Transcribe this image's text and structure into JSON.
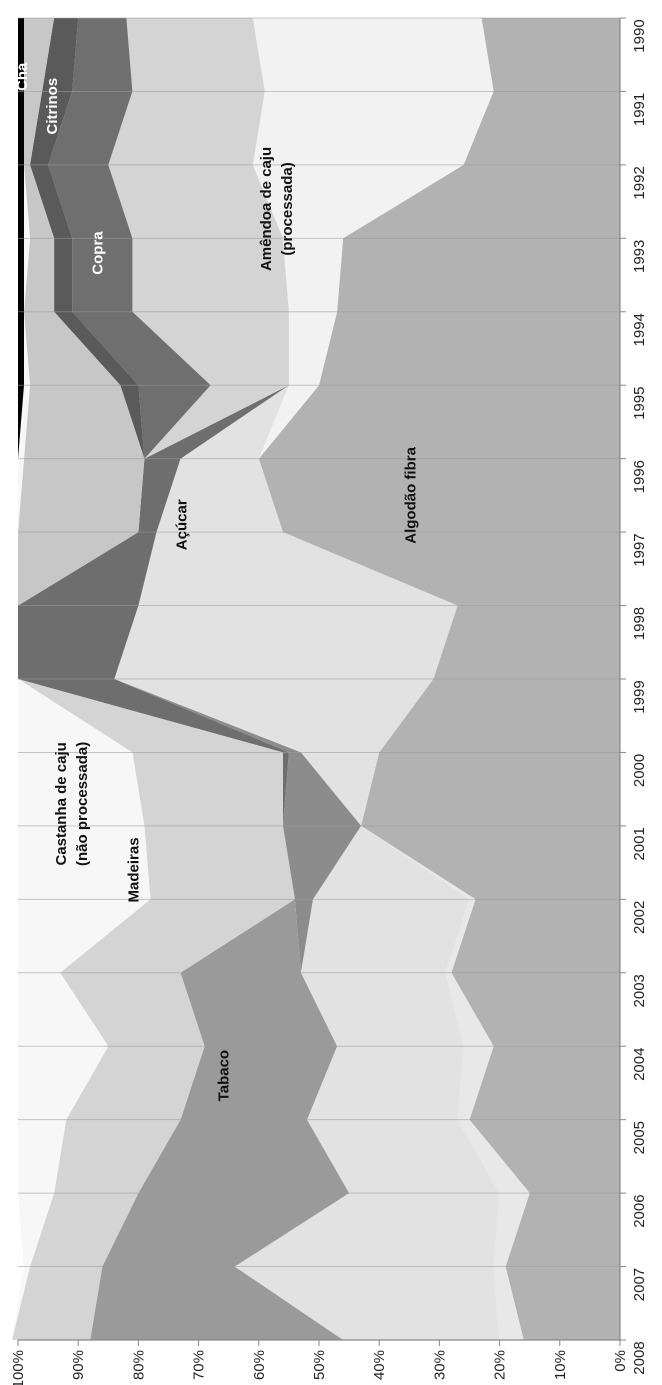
{
  "chart_data": {
    "type": "area",
    "stacked": "percent",
    "orientation": "rotated-90",
    "x": [
      1990,
      1991,
      1992,
      1993,
      1994,
      1995,
      1996,
      1997,
      1998,
      1999,
      2000,
      2001,
      2002,
      2003,
      2004,
      2005,
      2006,
      2007,
      2008
    ],
    "x_tick_labels": [
      "1990",
      "1991",
      "1992",
      "1993",
      "1994",
      "1995",
      "1996",
      "1997",
      "1998",
      "1999",
      "2000",
      "2001",
      "2002",
      "2003",
      "2004",
      "2005",
      "2006",
      "2007",
      "2008"
    ],
    "y_tick_labels": [
      "0%",
      "10%",
      "20%",
      "30%",
      "40%",
      "50%",
      "60%",
      "70%",
      "80%",
      "90%",
      "100%"
    ],
    "ylim": [
      0,
      100
    ],
    "grid": true,
    "series": [
      {
        "name": "Algodão fibra",
        "color": "#b2b2b2",
        "values": [
          23,
          21,
          26,
          46,
          47,
          50,
          60,
          56,
          27,
          31,
          40,
          43,
          24,
          28,
          21,
          25,
          15,
          19,
          16
        ]
      },
      {
        "name": "",
        "color": "#e8e8e8",
        "values": [
          0,
          0,
          0,
          0,
          0,
          0,
          0,
          0,
          0,
          0,
          0,
          0,
          1,
          1,
          5,
          2,
          5,
          2,
          4
        ]
      },
      {
        "name": "Amêndoa de caju (processada)",
        "color": "#f2f2f2",
        "values": [
          38,
          38,
          35,
          10,
          8,
          5,
          0,
          0,
          0,
          0,
          0,
          0,
          0,
          0,
          0,
          0,
          0,
          0,
          0
        ]
      },
      {
        "name": "Açúcar",
        "color": "#e2e2e2",
        "values": [
          0,
          0,
          0,
          0,
          0,
          0,
          13,
          21,
          53,
          53,
          13,
          0,
          26,
          24,
          21,
          25,
          25,
          43,
          26
        ]
      },
      {
        "name": "",
        "color": "#8c8c8c",
        "values": [
          0,
          0,
          0,
          0,
          0,
          0,
          0,
          0,
          0,
          0,
          2,
          13,
          3,
          0,
          0,
          0,
          0,
          0,
          0
        ]
      },
      {
        "name": "Tabaco",
        "color": "#9a9a9a",
        "values": [
          0,
          0,
          0,
          0,
          0,
          0,
          0,
          0,
          0,
          0,
          0,
          0,
          0,
          20,
          22,
          21,
          35,
          22,
          42
        ]
      },
      {
        "name": "",
        "color": "#6e6e6e",
        "values": [
          0,
          0,
          0,
          0,
          0,
          0,
          6,
          3,
          20,
          16,
          1,
          0,
          0,
          0,
          0,
          0,
          0,
          0,
          0
        ]
      },
      {
        "name": "Madeiras",
        "color": "#d4d4d4",
        "values": [
          21,
          22,
          24,
          25,
          26,
          13,
          0,
          0,
          0,
          0,
          25,
          23,
          24,
          20,
          16,
          19,
          14,
          12,
          13
        ]
      },
      {
        "name": "Copra",
        "color": "#6f6f6f",
        "values": [
          8,
          10,
          10,
          10,
          10,
          12,
          0,
          0,
          0,
          0,
          0,
          0,
          0,
          0,
          0,
          0,
          0,
          0,
          0
        ]
      },
      {
        "name": "Citrinos",
        "color": "#5a5a5a",
        "values": [
          4,
          5,
          3,
          3,
          3,
          3,
          0,
          0,
          0,
          0,
          0,
          0,
          0,
          0,
          0,
          0,
          0,
          0,
          0
        ]
      },
      {
        "name": "",
        "color": "#c7c7c7",
        "values": [
          5,
          3,
          1,
          4,
          5,
          15,
          20,
          20,
          0,
          0,
          0,
          0,
          0,
          0,
          0,
          0,
          0,
          0,
          0
        ]
      },
      {
        "name": "Castanha de caju (não processada)",
        "color": "#f7f7f7",
        "values": [
          0,
          0,
          0,
          1,
          0,
          1,
          1,
          0,
          0,
          0,
          19,
          21,
          22,
          7,
          15,
          8,
          6,
          1,
          0
        ]
      },
      {
        "name": "Chá",
        "color": "#000000",
        "values": [
          1,
          1,
          1,
          1,
          1,
          1,
          0,
          0,
          0,
          0,
          0,
          0,
          0,
          0,
          0,
          0,
          0,
          0,
          0
        ]
      }
    ],
    "labels": [
      {
        "text": "Algodão fibra",
        "x": 1996.5,
        "y": 34,
        "color": "dark"
      },
      {
        "text": "Amêndoa de caju",
        "x": 1992.6,
        "y": 58,
        "color": "dark"
      },
      {
        "text": "(processada)",
        "x": 1992.6,
        "y": 54.5,
        "color": "dark"
      },
      {
        "text": "Açúcar",
        "x": 1996.9,
        "y": 72,
        "color": "dark"
      },
      {
        "text": "Tabaco",
        "x": 2004.4,
        "y": 65,
        "color": "dark"
      },
      {
        "text": "Madeiras",
        "x": 2001.6,
        "y": 80,
        "color": "dark"
      },
      {
        "text": "Copra",
        "x": 1993.2,
        "y": 86,
        "color": "light"
      },
      {
        "text": "Citrinos",
        "x": 1991.2,
        "y": 93.5,
        "color": "light"
      },
      {
        "text": "Chá",
        "x": 1990.8,
        "y": 98.5,
        "color": "light"
      },
      {
        "text": "Castanha de caju",
        "x": 2000.7,
        "y": 92,
        "color": "dark"
      },
      {
        "text": "(não processada)",
        "x": 2000.7,
        "y": 88.5,
        "color": "dark"
      }
    ]
  }
}
